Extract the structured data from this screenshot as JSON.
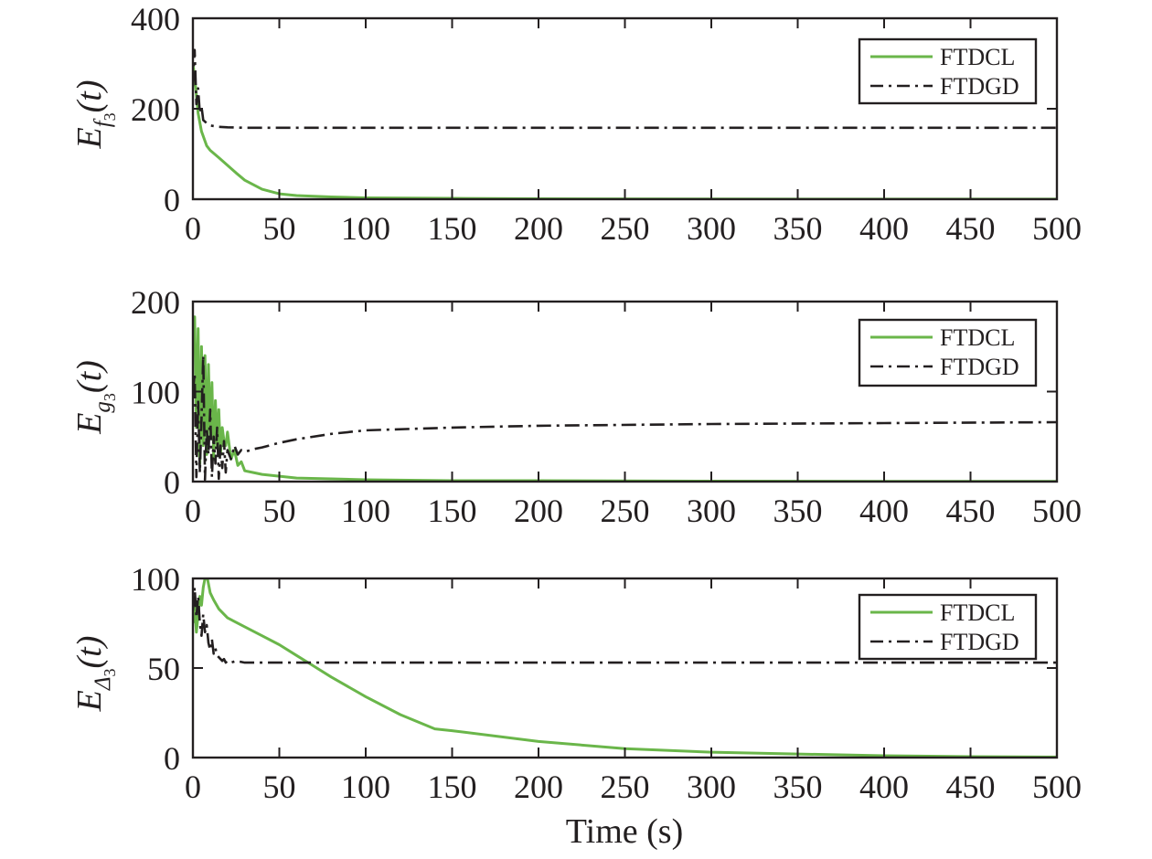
{
  "chart_data": [
    {
      "type": "line",
      "ylabel": {
        "main": "E",
        "sub": "f",
        "subsub": "3",
        "rest": "(t)"
      },
      "xlim": [
        0,
        500
      ],
      "ylim": [
        0,
        400
      ],
      "x_ticks": [
        0,
        50,
        100,
        150,
        200,
        250,
        300,
        350,
        400,
        450,
        500
      ],
      "y_ticks": [
        0,
        200,
        400
      ],
      "legend": {
        "position": "top-right",
        "entries": [
          "FTDCL",
          "FTDGD"
        ]
      },
      "series": [
        {
          "name": "FTDCL",
          "color": "#6ab64a",
          "style": "solid",
          "x": [
            0,
            1,
            2,
            3,
            5,
            8,
            10,
            15,
            20,
            25,
            30,
            40,
            50,
            60,
            80,
            100,
            150,
            200,
            300,
            400,
            500
          ],
          "y": [
            300,
            270,
            230,
            190,
            150,
            118,
            108,
            92,
            75,
            58,
            42,
            22,
            12,
            8,
            5,
            3,
            2,
            1,
            0.5,
            0.3,
            0.2
          ]
        },
        {
          "name": "FTDGD",
          "color": "#231f20",
          "style": "dashdot",
          "x": [
            0,
            1,
            2,
            3,
            4,
            5,
            6,
            8,
            10,
            15,
            20,
            30,
            50,
            100,
            200,
            300,
            400,
            500
          ],
          "y": [
            250,
            330,
            210,
            245,
            190,
            205,
            175,
            168,
            163,
            160,
            159,
            158,
            158,
            158,
            158,
            158,
            158,
            158
          ]
        }
      ]
    },
    {
      "type": "line",
      "ylabel": {
        "main": "E",
        "sub": "g",
        "subsub": "3",
        "rest": "(t)"
      },
      "xlim": [
        0,
        500
      ],
      "ylim": [
        0,
        200
      ],
      "x_ticks": [
        0,
        50,
        100,
        150,
        200,
        250,
        300,
        350,
        400,
        450,
        500
      ],
      "y_ticks": [
        0,
        100,
        200
      ],
      "legend": {
        "position": "top-right",
        "entries": [
          "FTDCL",
          "FTDGD"
        ]
      },
      "series": [
        {
          "name": "FTDCL",
          "color": "#6ab64a",
          "style": "solid",
          "x": [
            0,
            1,
            2,
            3,
            4,
            5,
            6,
            7,
            8,
            9,
            10,
            11,
            12,
            13,
            14,
            15,
            16,
            17,
            18,
            19,
            20,
            22,
            24,
            26,
            28,
            30,
            35,
            40,
            45,
            50,
            60,
            80,
            100,
            150,
            200,
            300,
            400,
            500
          ],
          "y": [
            150,
            183,
            60,
            170,
            20,
            150,
            40,
            140,
            30,
            130,
            50,
            110,
            25,
            90,
            40,
            80,
            30,
            60,
            45,
            40,
            55,
            25,
            35,
            18,
            22,
            12,
            10,
            8,
            7,
            6,
            4,
            3,
            2,
            1,
            1,
            0.5,
            0.3,
            0.2
          ]
        },
        {
          "name": "FTDGD",
          "color": "#231f20",
          "style": "dashdot",
          "x": [
            0,
            1,
            2,
            3,
            4,
            5,
            6,
            7,
            8,
            9,
            10,
            11,
            12,
            13,
            14,
            15,
            16,
            17,
            18,
            19,
            20,
            22,
            24,
            26,
            28,
            30,
            35,
            40,
            50,
            60,
            80,
            100,
            150,
            200,
            300,
            400,
            500
          ],
          "y": [
            100,
            120,
            5,
            90,
            10,
            70,
            140,
            2,
            60,
            30,
            80,
            5,
            50,
            20,
            60,
            3,
            40,
            15,
            45,
            10,
            35,
            25,
            40,
            30,
            35,
            33,
            36,
            38,
            43,
            47,
            53,
            57,
            60,
            62,
            64,
            65,
            66
          ]
        }
      ]
    },
    {
      "type": "line",
      "ylabel": {
        "main": "E",
        "sub": "Δ",
        "subsub": "3",
        "rest": "(t)"
      },
      "xlim": [
        0,
        500
      ],
      "ylim": [
        0,
        100
      ],
      "x_ticks": [
        0,
        50,
        100,
        150,
        200,
        250,
        300,
        350,
        400,
        450,
        500
      ],
      "y_ticks": [
        0,
        50,
        100
      ],
      "legend": {
        "position": "top-right",
        "entries": [
          "FTDCL",
          "FTDGD"
        ]
      },
      "series": [
        {
          "name": "FTDCL",
          "color": "#6ab64a",
          "style": "solid",
          "x": [
            0,
            1,
            2,
            3,
            4,
            5,
            6,
            7,
            8,
            10,
            12,
            15,
            20,
            30,
            40,
            50,
            60,
            70,
            80,
            100,
            120,
            140,
            150,
            200,
            250,
            300,
            350,
            400,
            450,
            500
          ],
          "y": [
            75,
            85,
            70,
            80,
            90,
            85,
            95,
            100,
            102,
            92,
            88,
            83,
            78,
            73,
            68,
            63,
            57,
            51,
            45,
            34,
            24,
            16,
            15,
            9,
            5,
            3,
            2,
            1,
            0.5,
            0.3
          ]
        },
        {
          "name": "FTDGD",
          "color": "#231f20",
          "style": "dashdot",
          "x": [
            0,
            1,
            2,
            3,
            4,
            5,
            6,
            7,
            8,
            9,
            10,
            11,
            12,
            13,
            14,
            15,
            16,
            17,
            18,
            19,
            20,
            22,
            25,
            30,
            40,
            60,
            100,
            200,
            300,
            400,
            500
          ],
          "y": [
            82,
            95,
            78,
            90,
            75,
            68,
            80,
            70,
            74,
            64,
            60,
            66,
            58,
            61,
            57,
            56,
            55,
            54,
            55,
            53,
            54,
            53,
            54,
            53,
            53,
            53,
            53,
            53,
            53,
            53,
            53
          ]
        }
      ]
    }
  ],
  "x_axis": {
    "label": "Time (s)"
  }
}
